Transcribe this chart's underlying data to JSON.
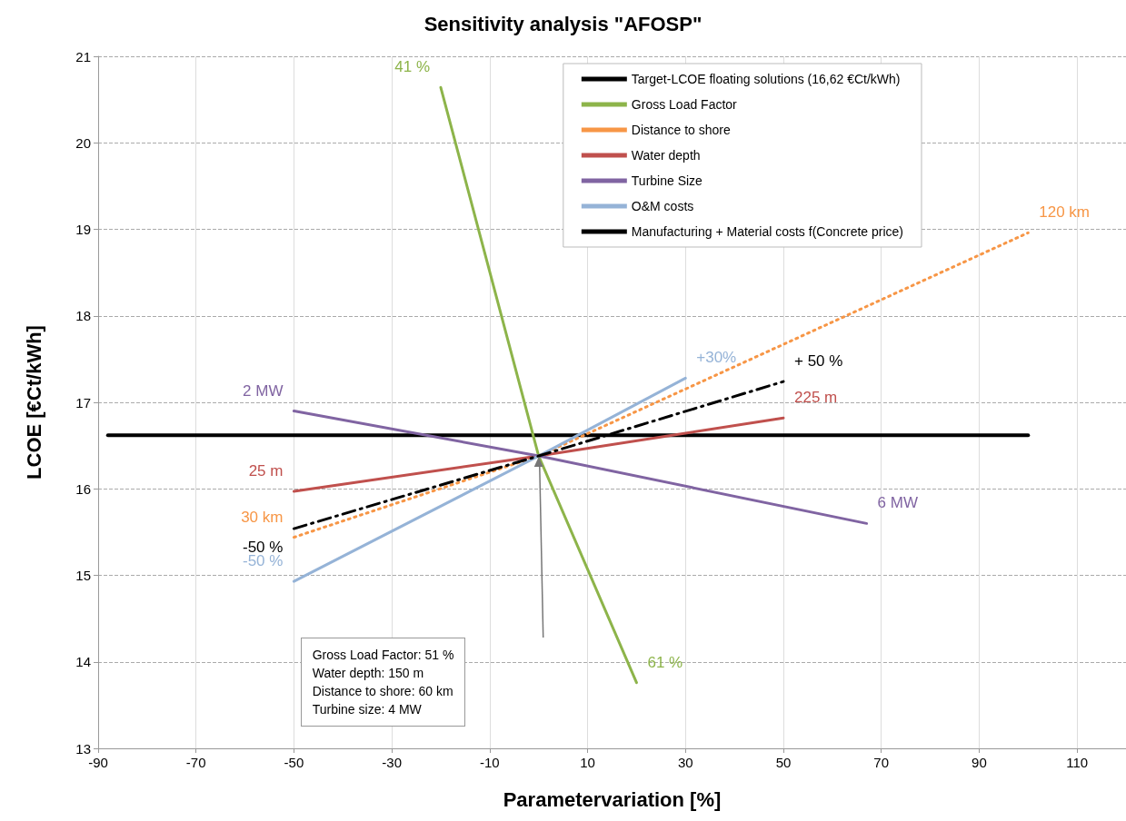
{
  "chart_data": {
    "type": "line",
    "title": "Sensitivity analysis \"AFOSP\"",
    "xlabel": "Parametervariation [%]",
    "ylabel": "LCOE [€Ct/kWh]",
    "xlim": [
      -90,
      120
    ],
    "xticks": [
      -90,
      -70,
      -50,
      -30,
      -10,
      10,
      30,
      50,
      70,
      90,
      110
    ],
    "ylim": [
      13,
      21
    ],
    "yticks": [
      13,
      14,
      15,
      16,
      17,
      18,
      19,
      20,
      21
    ],
    "grid": true,
    "legend": "top right",
    "marker": "none",
    "series": [
      {
        "name": "Target-LCOE floating solutions (16,62 €Ct/kWh)",
        "color": "#000000",
        "x": [
          -88,
          100
        ],
        "values": [
          16.62,
          16.62
        ],
        "line_style": "solid"
      },
      {
        "name": "Gross Load Factor",
        "color": "#8db44a",
        "x": [
          -20,
          0,
          20
        ],
        "values": [
          20.64,
          16.38,
          13.76
        ],
        "line_style": "solid"
      },
      {
        "name": "Distance to shore",
        "color": "#f79646",
        "x": [
          -50,
          0,
          100
        ],
        "values": [
          15.44,
          16.38,
          18.96
        ],
        "line_style": "dotted"
      },
      {
        "name": "Water depth",
        "color": "#c0504d",
        "x": [
          -50,
          0,
          50
        ],
        "values": [
          15.97,
          16.38,
          16.82
        ],
        "line_style": "solid"
      },
      {
        "name": "Turbine Size",
        "color": "#8064a2",
        "x": [
          -50,
          0,
          67
        ],
        "values": [
          16.9,
          16.38,
          15.6
        ],
        "line_style": "solid"
      },
      {
        "name": "O&M costs",
        "color": "#95b3d7",
        "x": [
          -50,
          0,
          30
        ],
        "values": [
          14.93,
          16.38,
          17.28
        ],
        "line_style": "solid"
      },
      {
        "name": "Manufacturing + Material costs f(Concrete price)",
        "color": "#000000",
        "x": [
          -50,
          0,
          50
        ],
        "values": [
          15.54,
          16.38,
          17.24
        ],
        "line_style": "dashed"
      }
    ],
    "annotations": [
      {
        "text": "41 %",
        "x": -20,
        "y": 20.64
      },
      {
        "text": "61 %",
        "x": 20,
        "y": 13.76
      },
      {
        "text": "30 km",
        "x": -50,
        "y": 15.44
      },
      {
        "text": "120 km",
        "x": 100,
        "y": 18.96
      },
      {
        "text": "25 m",
        "x": -50,
        "y": 15.97
      },
      {
        "text": "225 m",
        "x": 50,
        "y": 16.82
      },
      {
        "text": "2 MW",
        "x": -50,
        "y": 16.9
      },
      {
        "text": "6 MW",
        "x": 67,
        "y": 15.6
      },
      {
        "text": "-50 %",
        "x": -50,
        "y": 14.93
      },
      {
        "text": "+30%",
        "x": 30,
        "y": 17.28
      },
      {
        "text": "-50 %",
        "x": -50,
        "y": 15.54
      },
      {
        "text": "+ 50 %",
        "x": 50,
        "y": 17.24
      },
      "Gross Load Factor: 51 %\nWater depth: 150 m\nDistance to shore: 60 km\nTurbine size: 4 MW"
    ]
  }
}
